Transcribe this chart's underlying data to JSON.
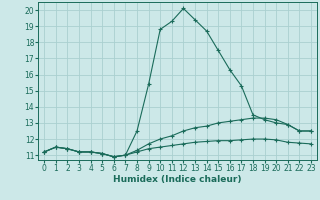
{
  "xlabel": "Humidex (Indice chaleur)",
  "bg_color": "#cce8e8",
  "grid_color": "#aad0d0",
  "line_color": "#1a6b5a",
  "xlim": [
    -0.5,
    23.5
  ],
  "ylim": [
    10.7,
    20.5
  ],
  "xticks": [
    0,
    1,
    2,
    3,
    4,
    5,
    6,
    7,
    8,
    9,
    10,
    11,
    12,
    13,
    14,
    15,
    16,
    17,
    18,
    19,
    20,
    21,
    22,
    23
  ],
  "yticks": [
    11,
    12,
    13,
    14,
    15,
    16,
    17,
    18,
    19,
    20
  ],
  "line1_x": [
    0,
    1,
    2,
    3,
    4,
    5,
    6,
    7,
    8,
    9,
    10,
    11,
    12,
    13,
    14,
    15,
    16,
    17,
    18,
    19,
    20,
    21,
    22,
    23
  ],
  "line1_y": [
    11.2,
    11.5,
    11.4,
    11.2,
    11.2,
    11.1,
    10.9,
    11.0,
    12.5,
    15.4,
    18.8,
    19.3,
    20.1,
    19.4,
    18.7,
    17.5,
    16.3,
    15.3,
    13.5,
    13.2,
    13.0,
    12.9,
    12.5,
    12.5
  ],
  "line2_x": [
    0,
    1,
    2,
    3,
    4,
    5,
    6,
    7,
    8,
    9,
    10,
    11,
    12,
    13,
    14,
    15,
    16,
    17,
    18,
    19,
    20,
    21,
    22,
    23
  ],
  "line2_y": [
    11.2,
    11.5,
    11.4,
    11.2,
    11.2,
    11.1,
    10.9,
    11.0,
    11.3,
    11.7,
    12.0,
    12.2,
    12.5,
    12.7,
    12.8,
    13.0,
    13.1,
    13.2,
    13.3,
    13.3,
    13.2,
    12.9,
    12.5,
    12.5
  ],
  "line3_x": [
    0,
    1,
    2,
    3,
    4,
    5,
    6,
    7,
    8,
    9,
    10,
    11,
    12,
    13,
    14,
    15,
    16,
    17,
    18,
    19,
    20,
    21,
    22,
    23
  ],
  "line3_y": [
    11.2,
    11.5,
    11.4,
    11.2,
    11.2,
    11.1,
    10.9,
    11.0,
    11.2,
    11.4,
    11.5,
    11.6,
    11.7,
    11.8,
    11.85,
    11.9,
    11.9,
    11.95,
    12.0,
    12.0,
    11.95,
    11.8,
    11.75,
    11.7
  ],
  "tick_fontsize": 5.5,
  "xlabel_fontsize": 6.5
}
